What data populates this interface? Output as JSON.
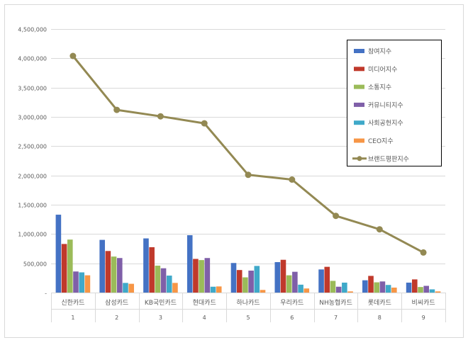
{
  "chart_data": {
    "type": "bar",
    "categories": [
      "신한카드",
      "삼성카드",
      "KB국민카드",
      "현대카드",
      "하나카드",
      "우리카드",
      "NH농협카드",
      "롯데카드",
      "비씨카드"
    ],
    "rank_labels": [
      "1",
      "2",
      "3",
      "4",
      "5",
      "6",
      "7",
      "8",
      "9"
    ],
    "y_ticks": [
      "-",
      "500,000",
      "1,000,000",
      "1,500,000",
      "2,000,000",
      "2,500,000",
      "3,000,000",
      "3,500,000",
      "4,000,000",
      "4,500,000"
    ],
    "ylim": [
      0,
      4500000
    ],
    "grid": true,
    "legend_position": "top-right",
    "series": [
      {
        "name": "참여지수",
        "type": "bar",
        "color": "#4472C4",
        "values": [
          1330000,
          900000,
          925000,
          980000,
          505000,
          520000,
          395000,
          210000,
          170000
        ]
      },
      {
        "name": "미디어지수",
        "type": "bar",
        "color": "#C0392B",
        "values": [
          830000,
          710000,
          775000,
          575000,
          385000,
          560000,
          440000,
          285000,
          225000
        ]
      },
      {
        "name": "소통지수",
        "type": "bar",
        "color": "#9BBB59",
        "values": [
          905000,
          615000,
          460000,
          555000,
          260000,
          295000,
          200000,
          175000,
          95000
        ]
      },
      {
        "name": "커뮤니티지수",
        "type": "bar",
        "color": "#7F5FA8",
        "values": [
          360000,
          590000,
          415000,
          590000,
          375000,
          355000,
          100000,
          190000,
          115000
        ]
      },
      {
        "name": "사회공헌지수",
        "type": "bar",
        "color": "#3FA9C9",
        "values": [
          345000,
          165000,
          290000,
          100000,
          455000,
          135000,
          170000,
          130000,
          55000
        ]
      },
      {
        "name": "CEO지수",
        "type": "bar",
        "color": "#F79646",
        "values": [
          295000,
          150000,
          165000,
          105000,
          45000,
          70000,
          20000,
          85000,
          20000
        ]
      },
      {
        "name": "브랜드평판지수",
        "type": "line",
        "color": "#938953",
        "values": [
          4040000,
          3120000,
          3010000,
          2890000,
          2010000,
          1930000,
          1310000,
          1080000,
          685000
        ]
      }
    ]
  }
}
